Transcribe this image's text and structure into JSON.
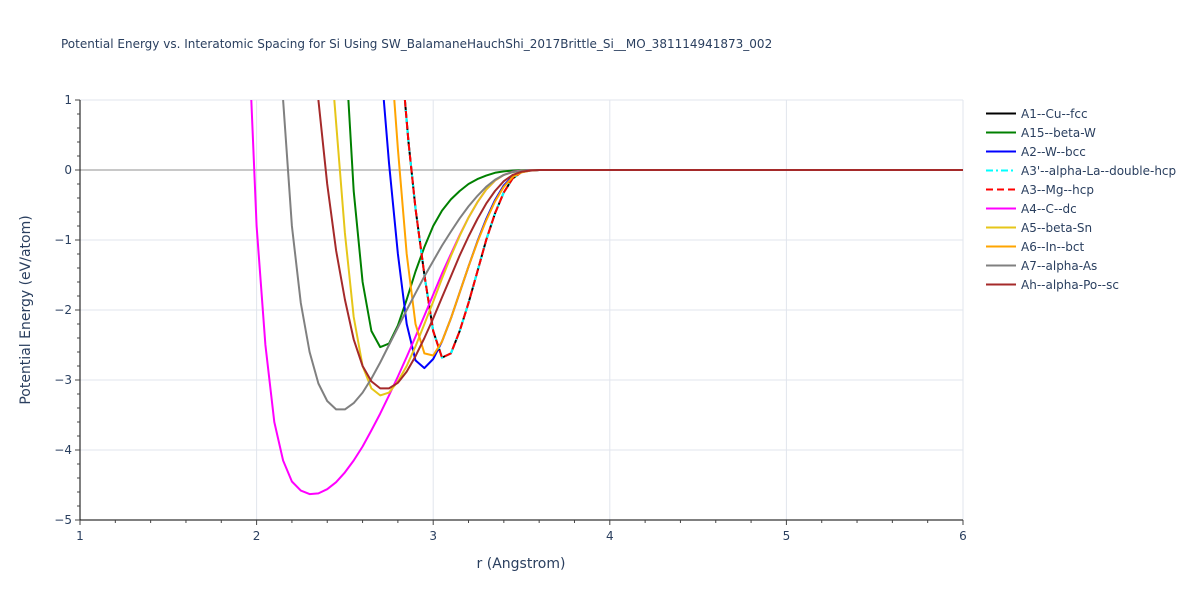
{
  "chart_data": {
    "type": "line",
    "title": "Potential Energy vs. Interatomic Spacing for Si Using SW_BalamaneHauchShi_2017Brittle_Si__MO_381114941873_002",
    "xlabel": "r (Angstrom)",
    "ylabel": "Potential Energy (eV/atom)",
    "xlim": [
      1,
      6
    ],
    "ylim": [
      -5,
      1
    ],
    "x_ticks": [
      1,
      2,
      3,
      4,
      5,
      6
    ],
    "x_tick_labels": [
      "1",
      "2",
      "3",
      "4",
      "5",
      "6"
    ],
    "y_ticks": [
      1,
      0,
      -1,
      -2,
      -3,
      -4,
      -5
    ],
    "y_tick_labels": [
      "1",
      "0",
      "−1",
      "−2",
      "−3",
      "−4",
      "−5"
    ],
    "grid": true,
    "legend_position": "right",
    "series": [
      {
        "name": "A1--Cu--fcc",
        "color": "#000000",
        "dash": "solid",
        "x": [
          2.84,
          2.86,
          2.9,
          2.95,
          3.0,
          3.05,
          3.1,
          3.15,
          3.2,
          3.25,
          3.3,
          3.35,
          3.4,
          3.45,
          3.5,
          3.55,
          3.6,
          3.7,
          4.0,
          5.0,
          6.0
        ],
        "y": [
          1.0,
          0.4,
          -0.55,
          -1.5,
          -2.3,
          -2.68,
          -2.62,
          -2.3,
          -1.9,
          -1.45,
          -1.0,
          -0.62,
          -0.32,
          -0.12,
          -0.03,
          -0.005,
          0,
          0,
          0,
          0,
          0
        ]
      },
      {
        "name": "A15--beta-W",
        "color": "#008000",
        "dash": "solid",
        "x": [
          2.52,
          2.55,
          2.6,
          2.65,
          2.7,
          2.75,
          2.8,
          2.85,
          2.9,
          2.95,
          3.0,
          3.05,
          3.1,
          3.15,
          3.2,
          3.25,
          3.3,
          3.35,
          3.4,
          3.45,
          3.5,
          3.55,
          3.6,
          3.7,
          4.0,
          5.0,
          6.0
        ],
        "y": [
          1.0,
          -0.3,
          -1.6,
          -2.3,
          -2.53,
          -2.48,
          -2.22,
          -1.85,
          -1.45,
          -1.1,
          -0.8,
          -0.58,
          -0.42,
          -0.3,
          -0.2,
          -0.13,
          -0.08,
          -0.04,
          -0.02,
          -0.008,
          -0.003,
          -0.001,
          0,
          0,
          0,
          0,
          0
        ]
      },
      {
        "name": "A2--W--bcc",
        "color": "#0000ff",
        "dash": "solid",
        "x": [
          2.72,
          2.75,
          2.8,
          2.85,
          2.9,
          2.95,
          3.0,
          3.05,
          3.1,
          3.15,
          3.2,
          3.25,
          3.3,
          3.35,
          3.4,
          3.45,
          3.5,
          3.55,
          3.6,
          3.7,
          4.0,
          5.0,
          6.0
        ],
        "y": [
          1.0,
          0.1,
          -1.2,
          -2.2,
          -2.72,
          -2.83,
          -2.7,
          -2.45,
          -2.12,
          -1.75,
          -1.38,
          -1.02,
          -0.7,
          -0.43,
          -0.22,
          -0.09,
          -0.03,
          -0.008,
          0,
          0,
          0,
          0,
          0
        ]
      },
      {
        "name": "A3'--alpha-La--double-hcp",
        "color": "#00ffff",
        "dash": "dashdot",
        "x": [
          2.84,
          2.86,
          2.9,
          2.95,
          3.0,
          3.05,
          3.1,
          3.15,
          3.2,
          3.25,
          3.3,
          3.35,
          3.4,
          3.45,
          3.5,
          3.55,
          3.6,
          3.7,
          4.0,
          5.0,
          6.0
        ],
        "y": [
          1.0,
          0.4,
          -0.55,
          -1.5,
          -2.3,
          -2.68,
          -2.62,
          -2.3,
          -1.9,
          -1.45,
          -1.0,
          -0.62,
          -0.32,
          -0.12,
          -0.03,
          -0.005,
          0,
          0,
          0,
          0,
          0
        ]
      },
      {
        "name": "A3--Mg--hcp",
        "color": "#ff0000",
        "dash": "dash",
        "x": [
          2.84,
          2.86,
          2.9,
          2.95,
          3.0,
          3.05,
          3.1,
          3.15,
          3.2,
          3.25,
          3.3,
          3.35,
          3.4,
          3.45,
          3.5,
          3.55,
          3.6,
          3.7,
          4.0,
          5.0,
          6.0
        ],
        "y": [
          1.0,
          0.4,
          -0.55,
          -1.5,
          -2.3,
          -2.68,
          -2.62,
          -2.3,
          -1.9,
          -1.45,
          -1.0,
          -0.62,
          -0.32,
          -0.12,
          -0.03,
          -0.005,
          0,
          0,
          0,
          0,
          0
        ]
      },
      {
        "name": "A4--C--dc",
        "color": "#ff00ff",
        "dash": "solid",
        "x": [
          1.97,
          2.0,
          2.05,
          2.1,
          2.15,
          2.2,
          2.25,
          2.3,
          2.35,
          2.4,
          2.45,
          2.5,
          2.55,
          2.6,
          2.65,
          2.7,
          2.75,
          2.8,
          2.85,
          2.9,
          2.95,
          3.0,
          3.05,
          3.1,
          3.15,
          3.2,
          3.25,
          3.3,
          3.35,
          3.4,
          3.45,
          3.5,
          3.55,
          3.6,
          3.7,
          4.0,
          5.0,
          6.0
        ],
        "y": [
          1.0,
          -0.8,
          -2.5,
          -3.6,
          -4.15,
          -4.45,
          -4.58,
          -4.63,
          -4.62,
          -4.56,
          -4.46,
          -4.32,
          -4.15,
          -3.95,
          -3.72,
          -3.48,
          -3.22,
          -2.95,
          -2.67,
          -2.38,
          -2.08,
          -1.78,
          -1.48,
          -1.2,
          -0.93,
          -0.68,
          -0.46,
          -0.28,
          -0.15,
          -0.07,
          -0.025,
          -0.008,
          -0.002,
          0,
          0,
          0,
          0,
          0
        ]
      },
      {
        "name": "A5--beta-Sn",
        "color": "#e6c619",
        "dash": "solid",
        "x": [
          2.44,
          2.5,
          2.55,
          2.6,
          2.65,
          2.7,
          2.75,
          2.8,
          2.85,
          2.9,
          2.95,
          3.0,
          3.05,
          3.1,
          3.15,
          3.2,
          3.25,
          3.3,
          3.35,
          3.4,
          3.45,
          3.5,
          3.55,
          3.6,
          3.7,
          4.0,
          5.0,
          6.0
        ],
        "y": [
          1.0,
          -0.9,
          -2.1,
          -2.8,
          -3.12,
          -3.22,
          -3.18,
          -3.02,
          -2.8,
          -2.52,
          -2.2,
          -1.88,
          -1.55,
          -1.23,
          -0.94,
          -0.68,
          -0.46,
          -0.28,
          -0.15,
          -0.07,
          -0.03,
          -0.01,
          -0.003,
          0,
          0,
          0,
          0,
          0
        ]
      },
      {
        "name": "A6--In--bct",
        "color": "#ffa500",
        "dash": "solid",
        "x": [
          2.78,
          2.8,
          2.85,
          2.9,
          2.95,
          3.0,
          3.05,
          3.1,
          3.15,
          3.2,
          3.25,
          3.3,
          3.35,
          3.4,
          3.45,
          3.5,
          3.55,
          3.6,
          3.7,
          4.0,
          5.0,
          6.0
        ],
        "y": [
          1.0,
          0.3,
          -1.2,
          -2.2,
          -2.62,
          -2.65,
          -2.45,
          -2.12,
          -1.75,
          -1.38,
          -1.03,
          -0.72,
          -0.45,
          -0.24,
          -0.1,
          -0.035,
          -0.008,
          0,
          0,
          0,
          0,
          0
        ]
      },
      {
        "name": "A7--alpha-As",
        "color": "#808080",
        "dash": "solid",
        "x": [
          2.15,
          2.2,
          2.25,
          2.3,
          2.35,
          2.4,
          2.45,
          2.5,
          2.55,
          2.6,
          2.65,
          2.7,
          2.75,
          2.8,
          2.85,
          2.9,
          2.95,
          3.0,
          3.05,
          3.1,
          3.15,
          3.2,
          3.25,
          3.3,
          3.35,
          3.4,
          3.45,
          3.5,
          3.55,
          3.6,
          3.7,
          4.0,
          5.0,
          6.0
        ],
        "y": [
          1.0,
          -0.8,
          -1.9,
          -2.6,
          -3.05,
          -3.3,
          -3.42,
          -3.42,
          -3.33,
          -3.18,
          -2.98,
          -2.75,
          -2.5,
          -2.25,
          -2.0,
          -1.76,
          -1.52,
          -1.3,
          -1.08,
          -0.88,
          -0.69,
          -0.52,
          -0.37,
          -0.24,
          -0.14,
          -0.07,
          -0.03,
          -0.01,
          -0.003,
          0,
          0,
          0,
          0,
          0
        ]
      },
      {
        "name": "Ah--alpha-Po--sc",
        "color": "#a52a2a",
        "dash": "solid",
        "x": [
          2.35,
          2.4,
          2.45,
          2.5,
          2.55,
          2.6,
          2.65,
          2.7,
          2.75,
          2.8,
          2.85,
          2.9,
          2.95,
          3.0,
          3.05,
          3.1,
          3.15,
          3.2,
          3.25,
          3.3,
          3.35,
          3.4,
          3.45,
          3.5,
          3.55,
          3.6,
          3.7,
          4.0,
          5.0,
          6.0
        ],
        "y": [
          1.0,
          -0.2,
          -1.15,
          -1.85,
          -2.42,
          -2.8,
          -3.02,
          -3.12,
          -3.12,
          -3.04,
          -2.88,
          -2.66,
          -2.4,
          -2.12,
          -1.82,
          -1.52,
          -1.22,
          -0.95,
          -0.7,
          -0.48,
          -0.3,
          -0.16,
          -0.07,
          -0.025,
          -0.007,
          0,
          0,
          0,
          0,
          0
        ]
      }
    ]
  }
}
